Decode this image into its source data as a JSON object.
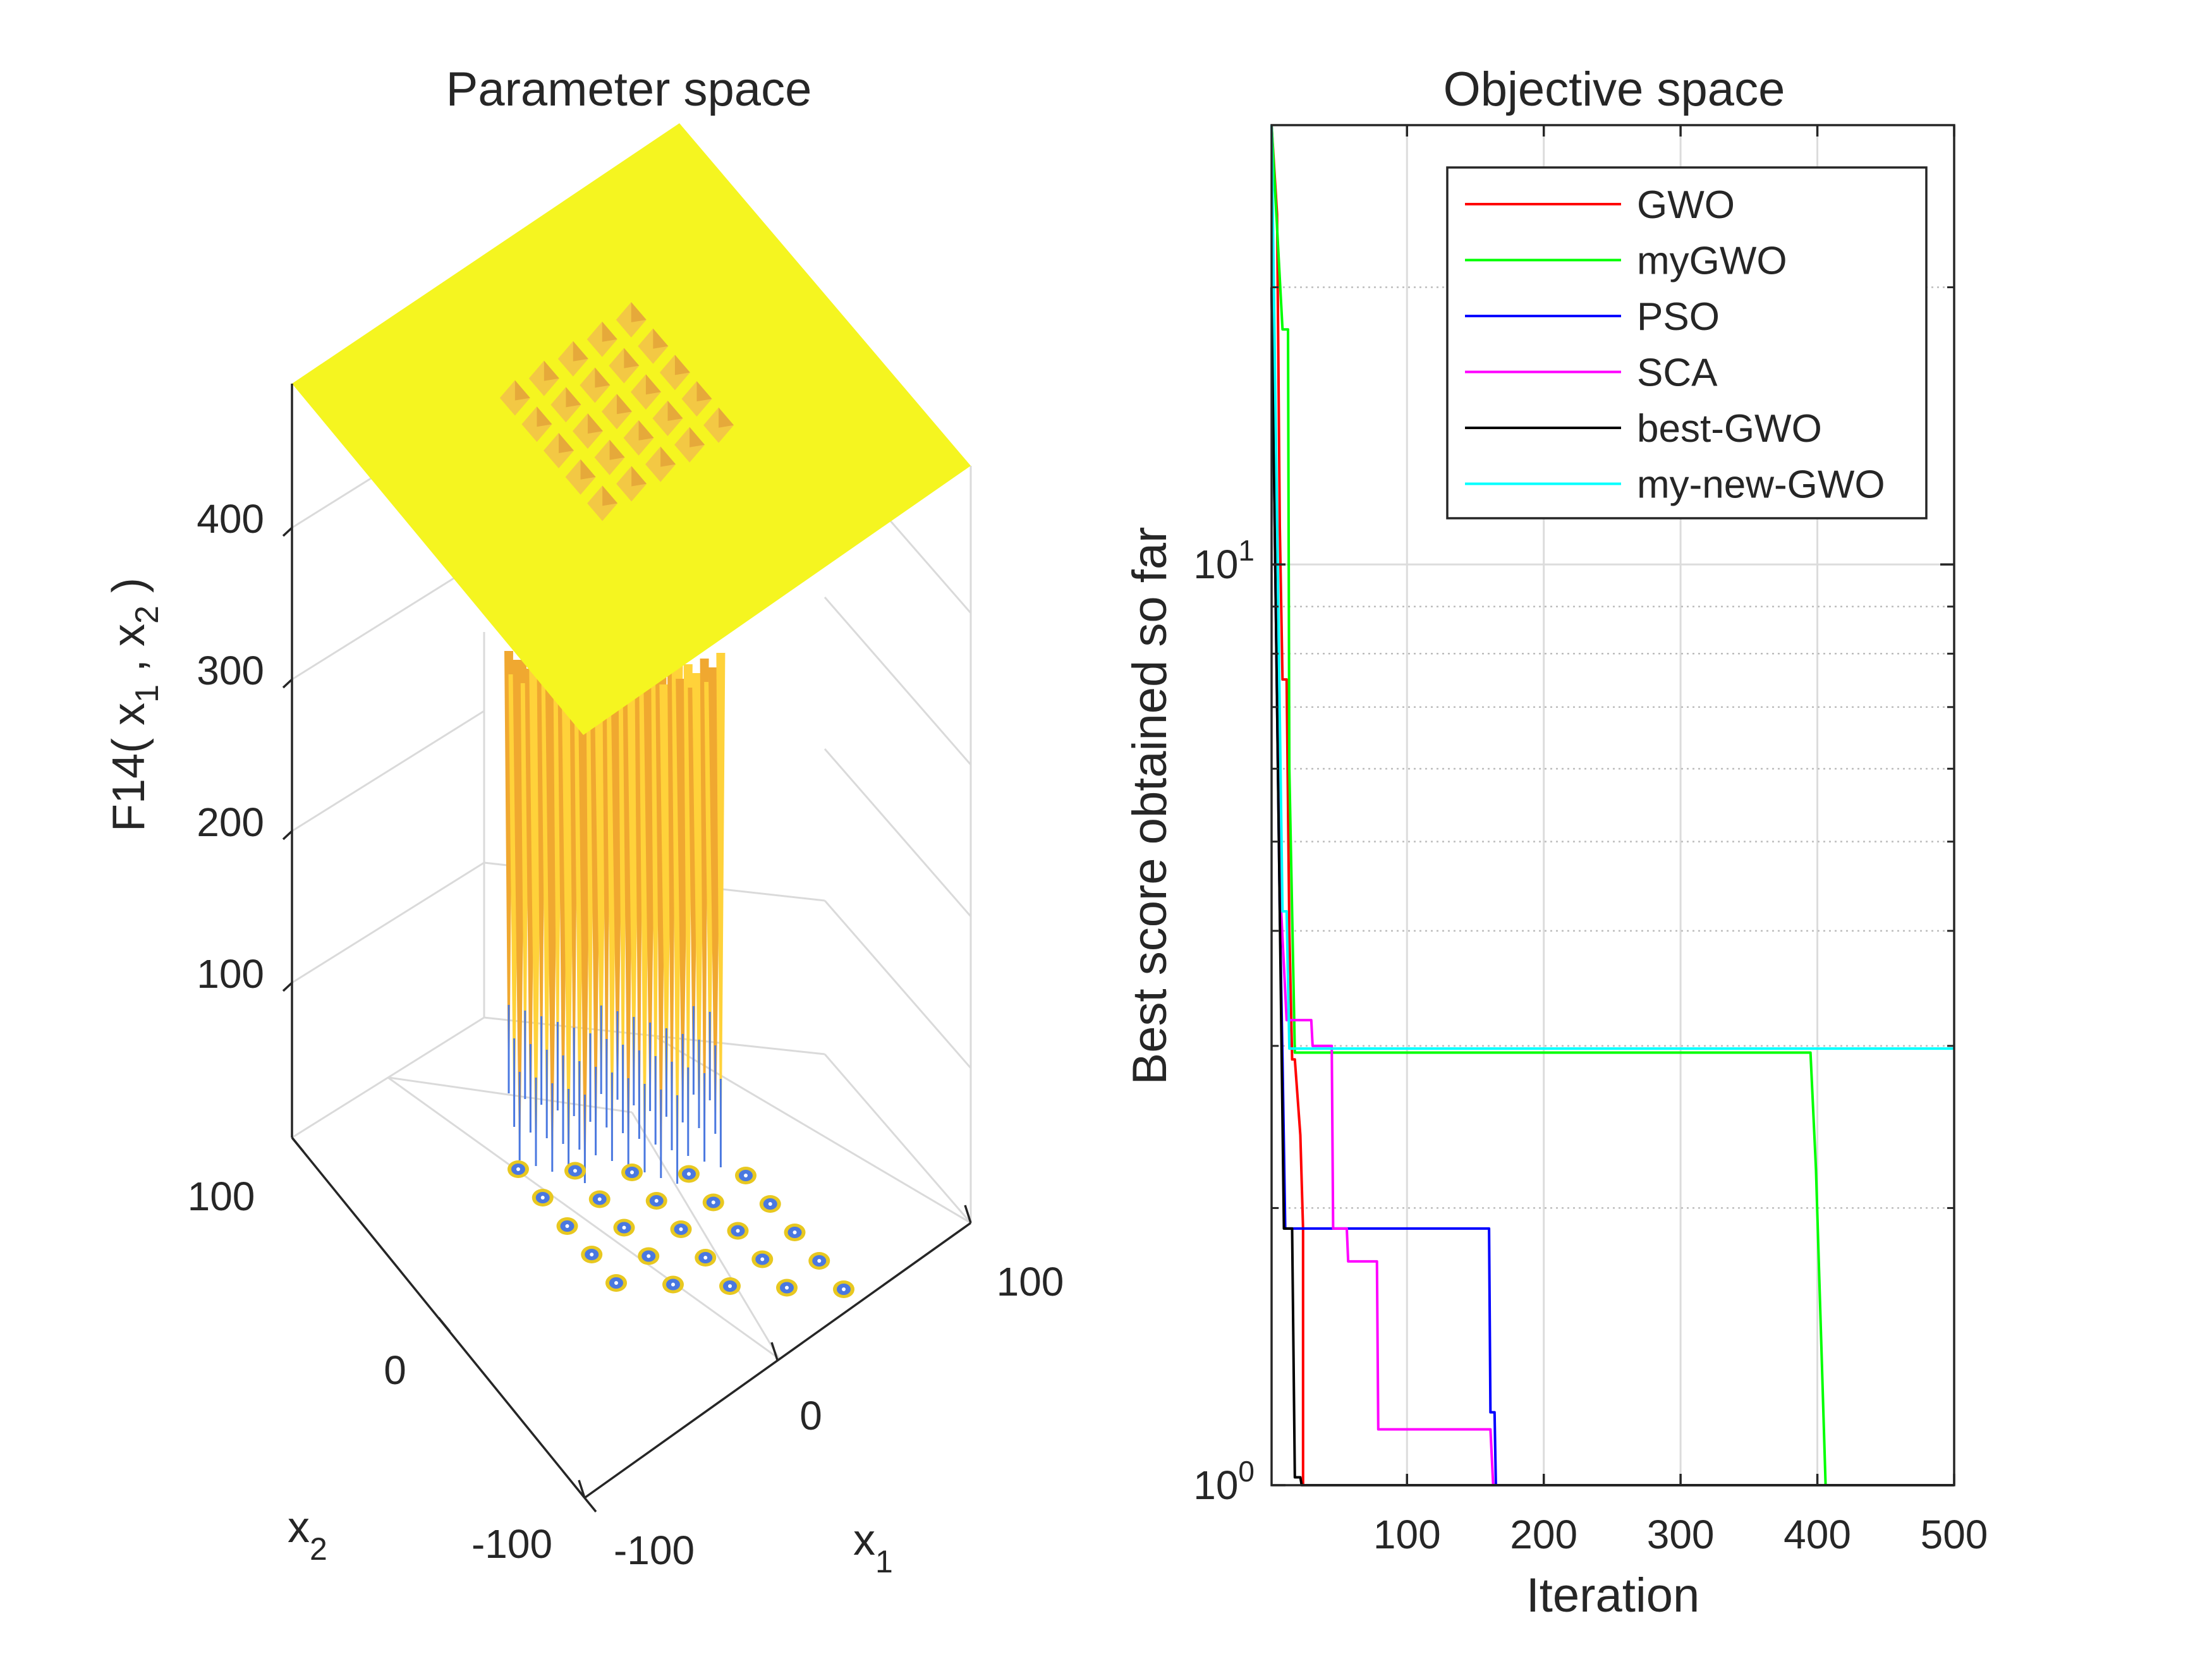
{
  "chart_data": [
    {
      "type": "surface",
      "title": "Parameter space",
      "xlabel": "x",
      "xlabel_sub": "1",
      "ylabel": "x",
      "ylabel_sub": "2",
      "zlabel_parts": [
        "F14( x",
        "1",
        " , x",
        "2",
        " )"
      ],
      "xticks": [
        "-100",
        "0",
        "100"
      ],
      "yticks": [
        "-100",
        "0",
        "100"
      ],
      "zticks": [
        "100",
        "200",
        "300",
        "400"
      ],
      "xlim": [
        -100,
        100
      ],
      "ylim": [
        -100,
        100
      ],
      "grid": true,
      "colors": {
        "plateau": "#f5f520",
        "wells": "#ffd23a",
        "wells_dark": "#f0a830",
        "well_bottom": "#4a78e0",
        "well_ring": "#e8c820"
      },
      "minima_grid": "5x5"
    },
    {
      "type": "line",
      "title": "Objective space",
      "xlabel": "Iteration",
      "ylabel": "Best score obtained so far",
      "xlim": [
        1,
        500
      ],
      "ylim": [
        1,
        30
      ],
      "yscale": "log",
      "xticks": [
        "100",
        "200",
        "300",
        "400",
        "500"
      ],
      "xtick_values": [
        100,
        200,
        300,
        400,
        500
      ],
      "yticks": [
        {
          "value": 1,
          "base": "10",
          "exp": "0"
        },
        {
          "value": 10,
          "base": "10",
          "exp": "1"
        }
      ],
      "grid": true,
      "legend_position": "top-right",
      "series": [
        {
          "name": "GWO",
          "color": "#ff0000",
          "points": [
            [
              1,
              30
            ],
            [
              5,
              24
            ],
            [
              7,
              11
            ],
            [
              9,
              7.5
            ],
            [
              12,
              7.5
            ],
            [
              14,
              4
            ],
            [
              16,
              2.9
            ],
            [
              18,
              2.9
            ],
            [
              22,
              2.4
            ],
            [
              24,
              1.9
            ],
            [
              24,
              1
            ],
            [
              500,
              1
            ]
          ]
        },
        {
          "name": "myGWO",
          "color": "#00ff00",
          "points": [
            [
              1,
              30
            ],
            [
              9,
              18
            ],
            [
              13,
              18
            ],
            [
              14,
              6
            ],
            [
              18,
              2.95
            ],
            [
              395,
              2.95
            ],
            [
              399,
              2.2
            ],
            [
              406,
              1
            ],
            [
              500,
              1
            ]
          ]
        },
        {
          "name": "PSO",
          "color": "#0000ff",
          "points": [
            [
              1,
              20
            ],
            [
              7,
              4.2
            ],
            [
              9,
              2.9
            ],
            [
              11,
              1.9
            ],
            [
              160,
              1.9
            ],
            [
              161,
              1.2
            ],
            [
              164,
              1.2
            ],
            [
              165,
              1
            ],
            [
              500,
              1
            ]
          ]
        },
        {
          "name": "SCA",
          "color": "#ff00ff",
          "points": [
            [
              1,
              20
            ],
            [
              8,
              4.2
            ],
            [
              12,
              3.2
            ],
            [
              30,
              3.2
            ],
            [
              31,
              3.0
            ],
            [
              45,
              3.0
            ],
            [
              46,
              1.9
            ],
            [
              56,
              1.9
            ],
            [
              57,
              1.75
            ],
            [
              78,
              1.75
            ],
            [
              79,
              1.15
            ],
            [
              161,
              1.15
            ],
            [
              163,
              1
            ],
            [
              330,
              1
            ]
          ]
        },
        {
          "name": "best-GWO",
          "color": "#000000",
          "points": [
            [
              1,
              20
            ],
            [
              8,
              3.2
            ],
            [
              10,
              1.9
            ],
            [
              16,
              1.9
            ],
            [
              18,
              1.02
            ],
            [
              22,
              1.02
            ],
            [
              23,
              1
            ],
            [
              500,
              1
            ]
          ]
        },
        {
          "name": "my-new-GWO",
          "color": "#00ffff",
          "points": [
            [
              1,
              30
            ],
            [
              9,
              4.2
            ],
            [
              12,
              4.2
            ],
            [
              14,
              2.98
            ],
            [
              500,
              2.98
            ]
          ]
        }
      ]
    }
  ]
}
